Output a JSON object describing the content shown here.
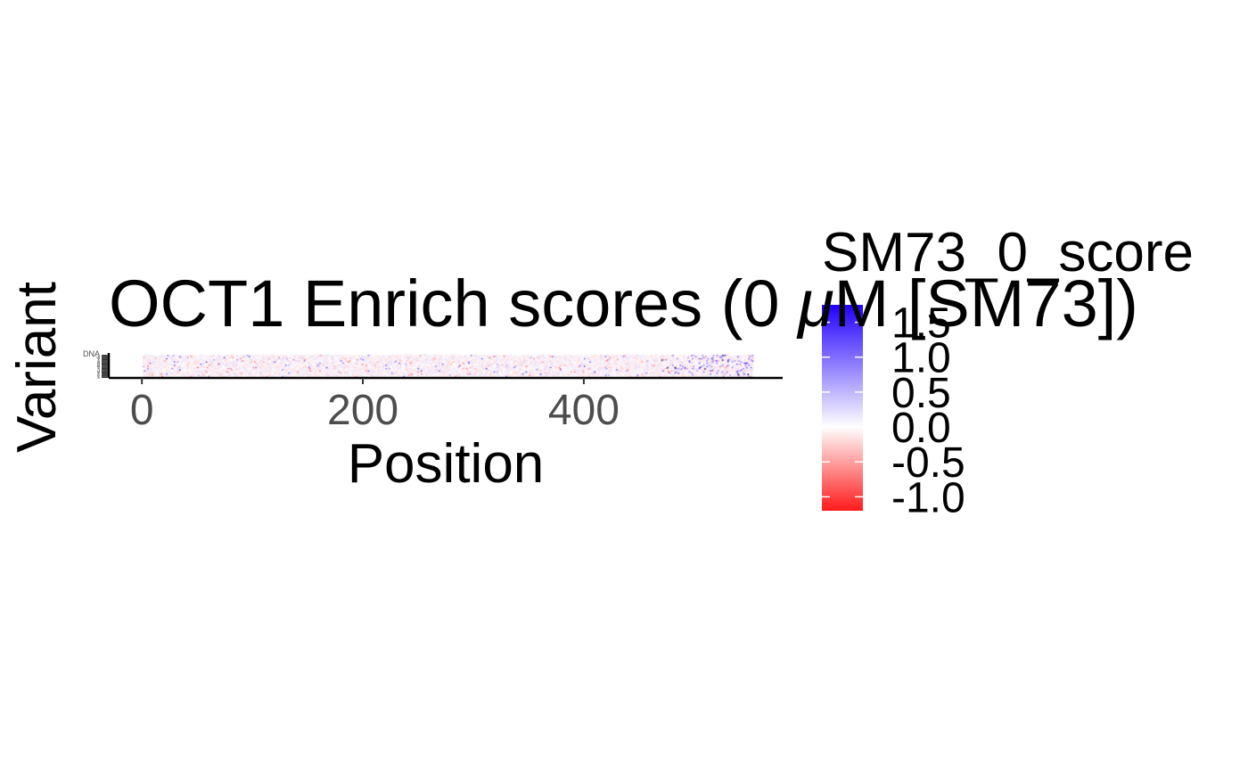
{
  "chart_data": {
    "type": "heatmap",
    "title_prefix": "OCT1 Enrich scores (0 ",
    "title_mu": "μ",
    "title_suffix": "M [SM73])",
    "xlabel": "Position",
    "ylabel": "Variant",
    "x_ticks": [
      0,
      200,
      400
    ],
    "xlim": [
      -30,
      580
    ],
    "x_range": [
      1,
      553
    ],
    "y_categories": [
      "DNA",
      "Y",
      "W",
      "V",
      "T",
      "S",
      "R",
      "Q",
      "P",
      "N",
      "M",
      "L",
      "K",
      "I",
      "H",
      "G",
      "F",
      "E",
      "D",
      "C",
      "A"
    ],
    "legend": {
      "title": "SM73_0_score",
      "ticks": [
        1.5,
        1.0,
        0.5,
        0.0,
        -0.5,
        -1.0
      ],
      "tick_labels": [
        "1.5",
        "1.0",
        "0.5",
        "0.0",
        "-0.5",
        "-1.0"
      ],
      "range": [
        -1.2,
        1.75
      ],
      "low_color": "#ff1a1a",
      "mid_color": "#ffffff",
      "high_color": "#2200ff",
      "placement": "right"
    },
    "colors": {
      "low": "#ff1a1a",
      "mid": "#ffffff",
      "high": "#2200ff",
      "axis": "#000000",
      "tick_text": "#4d4d4d"
    }
  }
}
